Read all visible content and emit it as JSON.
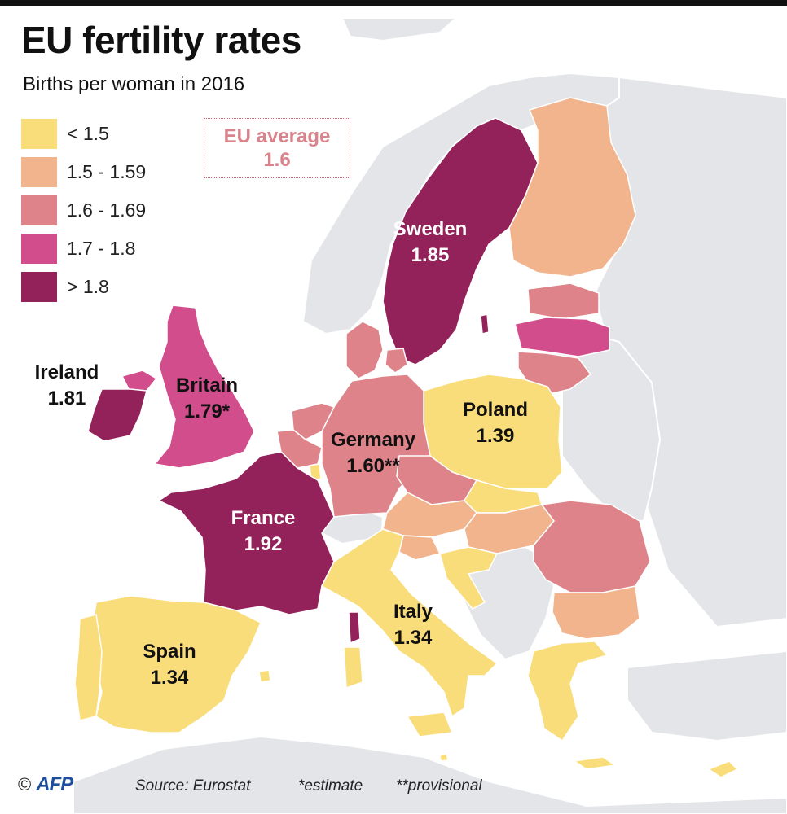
{
  "title": "EU fertility rates",
  "subtitle": "Births per woman in 2016",
  "legend": [
    {
      "label": "< 1.5",
      "color": "#f9dd7a"
    },
    {
      "label": "1.5 - 1.59",
      "color": "#f1b48d"
    },
    {
      "label": "1.6 - 1.69",
      "color": "#dd8389"
    },
    {
      "label": "1.7 - 1.8",
      "color": "#d24d8c"
    },
    {
      "label": "> 1.8",
      "color": "#93225a"
    }
  ],
  "eu_average": {
    "label": "EU average",
    "value": "1.6"
  },
  "countries": {
    "sweden": {
      "name": "Sweden",
      "value": "1.85"
    },
    "ireland": {
      "name": "Ireland",
      "value": "1.81"
    },
    "britain": {
      "name": "Britain",
      "value": "1.79*"
    },
    "poland": {
      "name": "Poland",
      "value": "1.39"
    },
    "germany": {
      "name": "Germany",
      "value": "1.60**"
    },
    "france": {
      "name": "France",
      "value": "1.92"
    },
    "italy": {
      "name": "Italy",
      "value": "1.34"
    },
    "spain": {
      "name": "Spain",
      "value": "1.34"
    }
  },
  "footer": {
    "copyright": "©",
    "agency": "AFP",
    "source": "Source: Eurostat",
    "note1": "*estimate",
    "note2": "**provisional"
  }
}
